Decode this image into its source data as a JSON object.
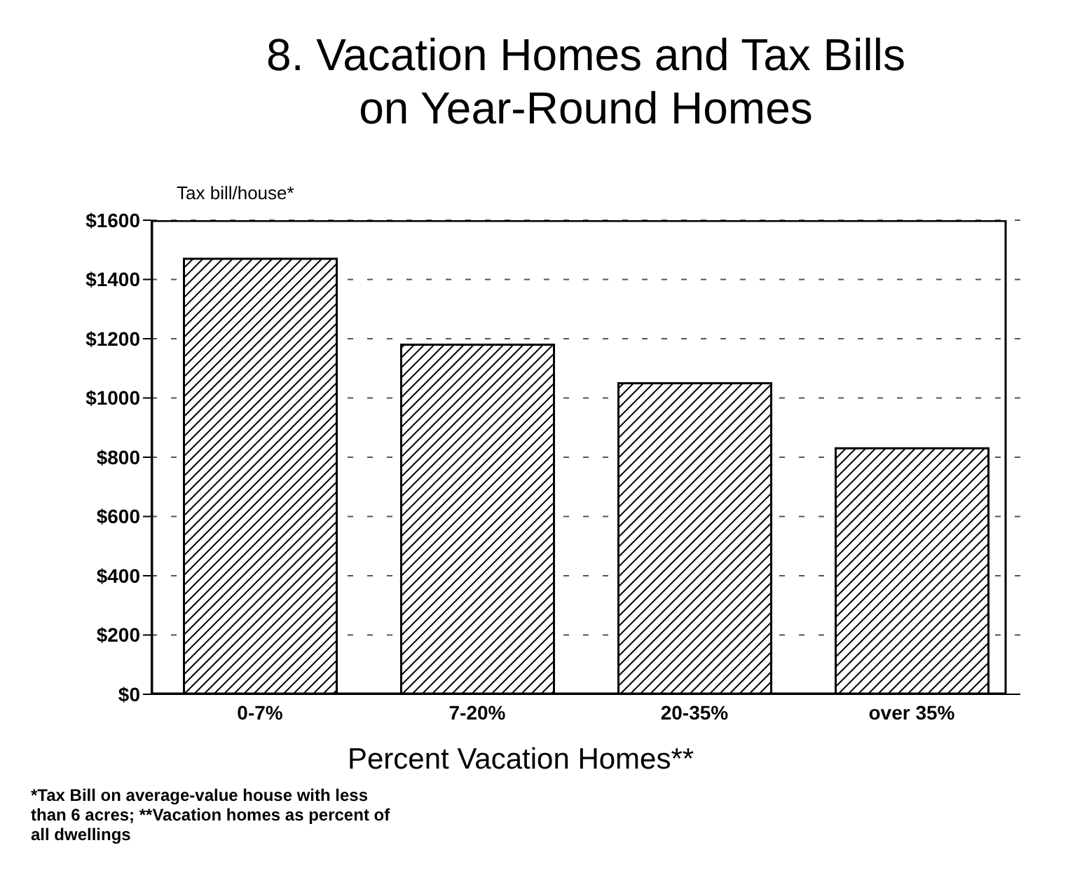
{
  "chart_data": {
    "type": "bar",
    "title": "8. Vacation Homes and Tax Bills on Year-Round Homes",
    "ylabel": "Tax bill/house*",
    "xlabel": "Percent Vacation Homes**",
    "categories": [
      "0-7%",
      "7-20%",
      "20-35%",
      "over 35%"
    ],
    "values": [
      1470,
      1180,
      1050,
      830
    ],
    "color": "#000000",
    "ylim": [
      0,
      1600
    ],
    "yticks": [
      {
        "value": 0,
        "label": "$0"
      },
      {
        "value": 200,
        "label": "$200"
      },
      {
        "value": 400,
        "label": "$400"
      },
      {
        "value": 600,
        "label": "$600"
      },
      {
        "value": 800,
        "label": "$800"
      },
      {
        "value": 1000,
        "label": "$1000"
      },
      {
        "value": 1200,
        "label": "$1200"
      },
      {
        "value": 1400,
        "label": "$1400"
      },
      {
        "value": 1600,
        "label": "$1600"
      }
    ],
    "grid": "y",
    "annotations": [
      "*Tax Bill on average-value house with less than 6 acres;  **Vacation homes as percent of all dwellings"
    ]
  }
}
